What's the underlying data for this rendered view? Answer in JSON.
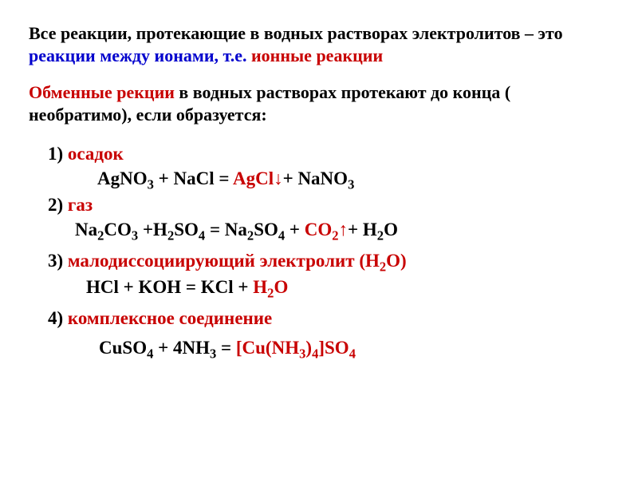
{
  "colors": {
    "black": "#000000",
    "blue": "#0000cd",
    "red": "#c80000",
    "background": "#ffffff"
  },
  "typography": {
    "font_family": "Times New Roman",
    "body_fontsize": 22,
    "list_fontsize": 23,
    "weight": "bold"
  },
  "para1": {
    "seg1": "Все реакции, протекающие в водных растворах электролитов – это ",
    "seg2": "реакции между ионами, т.е. ",
    "seg3": "ионные реакции"
  },
  "para2": {
    "seg1": "Обменные рекции",
    "seg2": " в водных растворах протекают до конца ( необратимо), если образуется:"
  },
  "items": {
    "i1": {
      "num": "1) ",
      "label": "осадок",
      "eq_left": "AgNO",
      "eq_mid1": " + NaCl = ",
      "eq_prod": "AgCl↓",
      "eq_right": "+ NaNO"
    },
    "i2": {
      "num": "2) ",
      "label": "газ",
      "eq_a": "Na",
      "eq_b": "CO",
      "eq_c": " +H",
      "eq_d": "SO",
      "eq_e": " = Na",
      "eq_f": "SO",
      "eq_g": " + ",
      "eq_h": "CO",
      "eq_i": "↑",
      "eq_j": "+ H",
      "eq_k": "O"
    },
    "i3": {
      "num": "3) ",
      "label": "малодиссоциирующий электролит (Н",
      "label2": "О)",
      "eq_a": "HCl + KOH = KCl + ",
      "eq_b": "H",
      "eq_c": "O"
    },
    "i4": {
      "num": "4) ",
      "label": "комплексное соединение",
      "eq_a": "CuSO",
      "eq_b": " + 4NH",
      "eq_c": " = ",
      "eq_d": "[Cu(NH",
      "eq_e": ")",
      "eq_f": "]SO"
    }
  },
  "sub": {
    "s2": "2",
    "s3": "3",
    "s4": "4"
  }
}
